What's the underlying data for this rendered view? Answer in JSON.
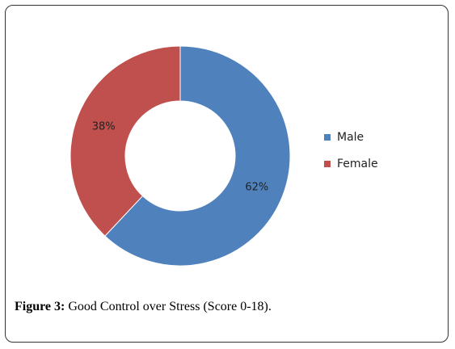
{
  "chart_data": {
    "type": "pie",
    "variant": "donut",
    "categories": [
      "Male",
      "Female"
    ],
    "values": [
      62,
      38
    ],
    "labels": [
      "62%",
      "38%"
    ],
    "colors": [
      "#4f81bd",
      "#c0504d"
    ],
    "legend_position": "right"
  },
  "caption": {
    "label": "Figure 3:",
    "text": "Good Control over Stress (Score 0-18)."
  }
}
